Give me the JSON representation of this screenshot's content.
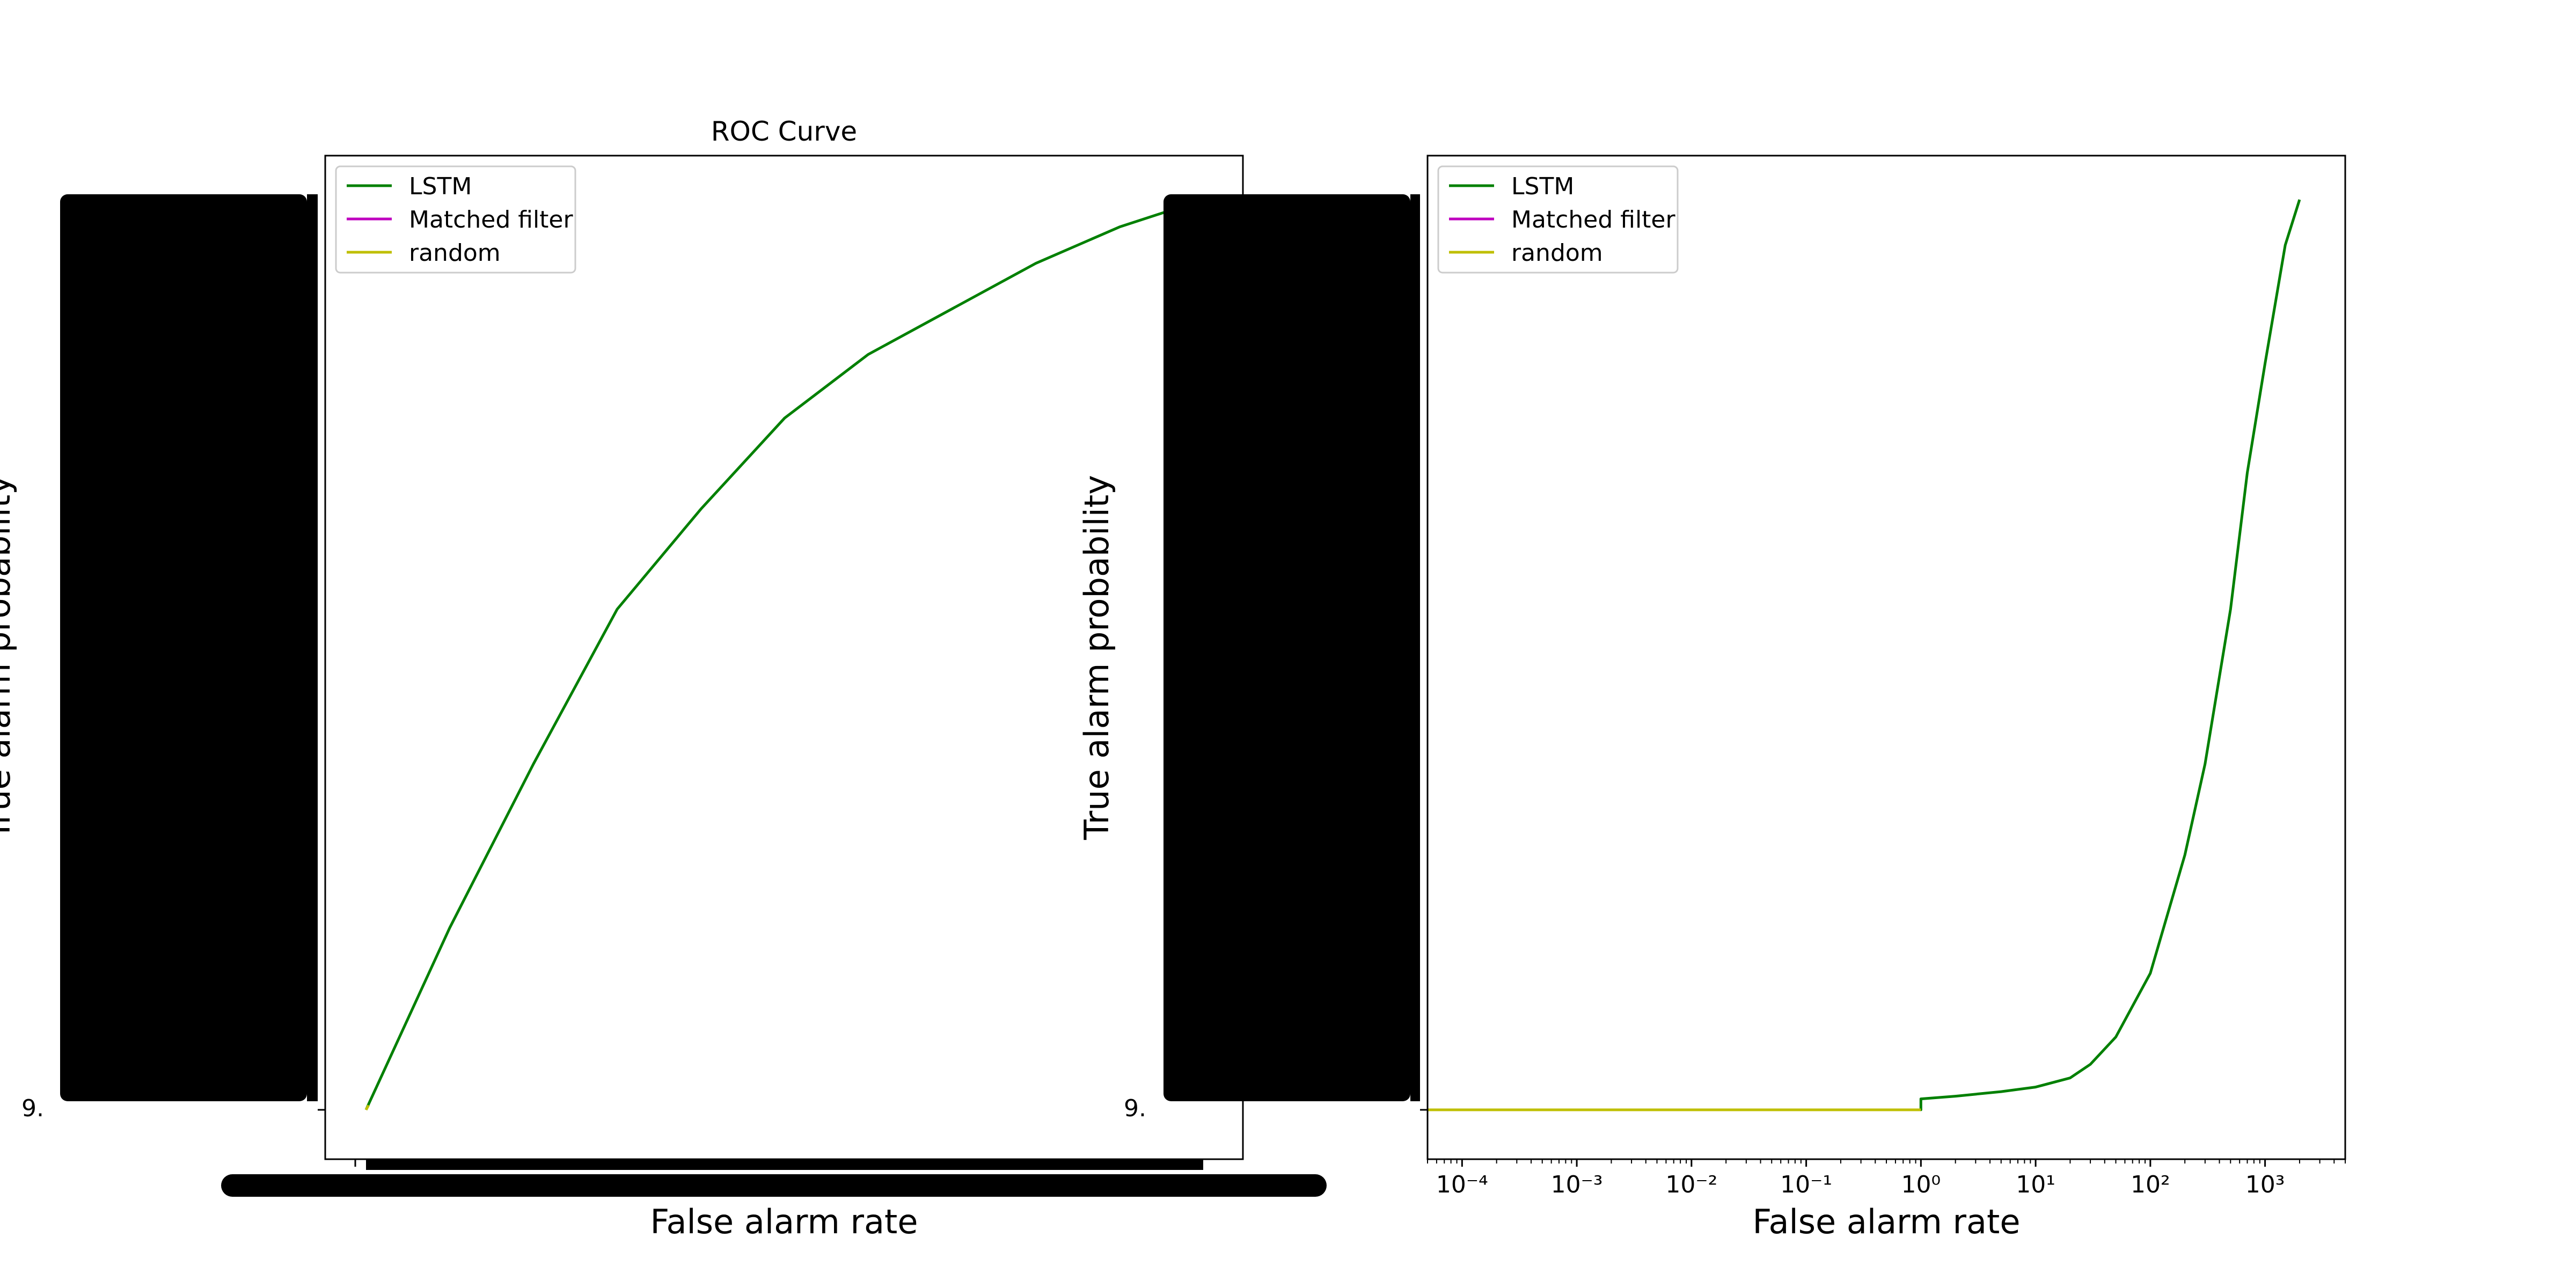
{
  "chart_data": [
    {
      "type": "line",
      "title": "ROC Curve",
      "xlabel": "False alarm rate",
      "ylabel": "True alarm probability",
      "x_scale": "linear",
      "y_scale": "linear",
      "grid": false,
      "legend": {
        "position": "top-left",
        "entries": [
          "LSTM",
          "Matched filter",
          "random"
        ]
      },
      "y_tick_label_fragment": "9.",
      "tick_labels_overlapping": true,
      "series": [
        {
          "name": "LSTM",
          "color": "#008000",
          "x": [
            0.0,
            0.01,
            0.05,
            0.1,
            0.2,
            0.3,
            0.4,
            0.5,
            0.6,
            0.7,
            0.8,
            0.9,
            1.0
          ],
          "y": [
            0.0,
            0.02,
            0.1,
            0.2,
            0.38,
            0.55,
            0.66,
            0.76,
            0.83,
            0.88,
            0.93,
            0.97,
            1.0
          ]
        },
        {
          "name": "Matched filter",
          "color": "#bf00bf",
          "x": [],
          "y": []
        },
        {
          "name": "random",
          "color": "#bfbf00",
          "x": [
            0.0,
            0.003
          ],
          "y": [
            0.0,
            0.005
          ]
        }
      ]
    },
    {
      "type": "line",
      "title": "",
      "xlabel": "False alarm rate",
      "ylabel": "True alarm probability",
      "x_scale": "log",
      "y_scale": "linear",
      "grid": false,
      "xlim": [
        5e-05,
        5000
      ],
      "x_tick_labels": [
        "10⁻⁴",
        "10⁻³",
        "10⁻²",
        "10⁻¹",
        "10⁰",
        "10¹",
        "10²",
        "10³"
      ],
      "legend": {
        "position": "top-left",
        "entries": [
          "LSTM",
          "Matched filter",
          "random"
        ]
      },
      "y_tick_label_fragment": "9.",
      "tick_labels_overlapping": true,
      "series": [
        {
          "name": "LSTM",
          "color": "#008000",
          "x": [
            5e-05,
            1,
            1,
            2,
            5,
            10,
            20,
            30,
            50,
            100,
            200,
            300,
            500,
            700,
            1000,
            1500,
            2000
          ],
          "y": [
            0.0,
            0.0,
            0.012,
            0.015,
            0.02,
            0.025,
            0.035,
            0.05,
            0.08,
            0.15,
            0.28,
            0.38,
            0.55,
            0.7,
            0.82,
            0.95,
            1.0
          ]
        },
        {
          "name": "Matched filter",
          "color": "#bf00bf",
          "x": [],
          "y": []
        },
        {
          "name": "random",
          "color": "#bfbf00",
          "x": [
            5e-05,
            1
          ],
          "y": [
            0.0,
            0.0
          ]
        }
      ]
    }
  ]
}
